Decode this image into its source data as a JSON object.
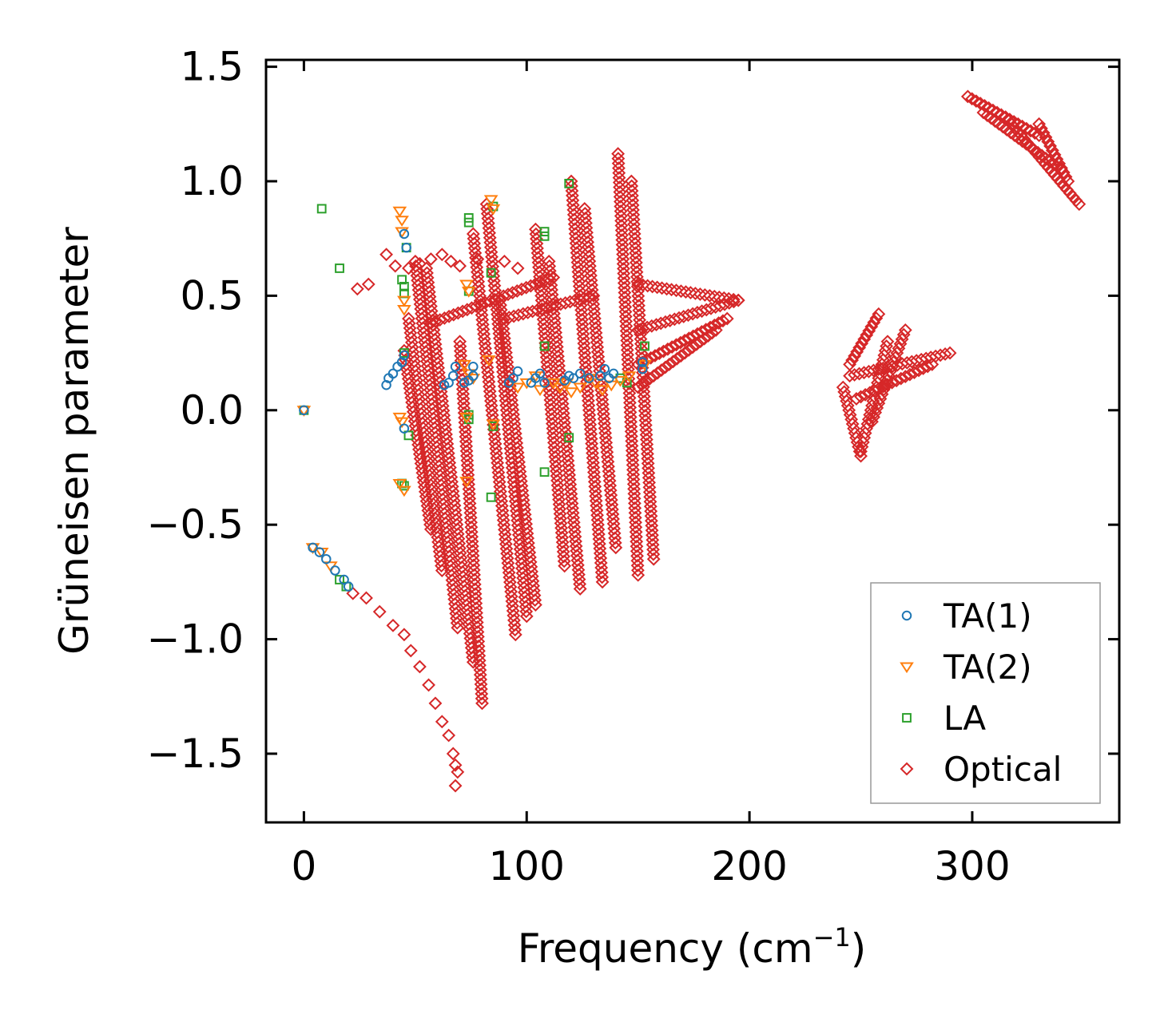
{
  "chart_data": {
    "type": "scatter",
    "xlabel": "Frequency (cm",
    "xlabel_sup": "−1",
    "xlabel_end": ")",
    "ylabel": "Grüneisen parameter",
    "xlim": [
      -17,
      366
    ],
    "ylim": [
      -1.8,
      1.53
    ],
    "x_ticks": [
      0,
      100,
      200,
      300
    ],
    "x_tick_labels": [
      "0",
      "100",
      "200",
      "300"
    ],
    "y_ticks": [
      1.5,
      1.0,
      0.5,
      0.0,
      -0.5,
      -1.0,
      -1.5
    ],
    "y_tick_labels": [
      "1.5",
      "1.0",
      "0.5",
      "0.0",
      "−0.5",
      "−1.0",
      "−1.5"
    ],
    "legend_position": "bottom-right",
    "series": [
      {
        "name": "TA(1)",
        "marker": "circle",
        "color": "#1f77b4",
        "points": [
          [
            0,
            0
          ],
          [
            4,
            -0.6
          ],
          [
            7,
            -0.62
          ],
          [
            10,
            -0.65
          ],
          [
            14,
            -0.7
          ],
          [
            18,
            -0.74
          ],
          [
            20,
            -0.77
          ],
          [
            37,
            0.11
          ],
          [
            38,
            0.14
          ],
          [
            40,
            0.16
          ],
          [
            42,
            0.19
          ],
          [
            44,
            0.21
          ],
          [
            45,
            0.24
          ],
          [
            45,
            0.77
          ],
          [
            46,
            0.71
          ],
          [
            45,
            -0.08
          ],
          [
            63,
            0.11
          ],
          [
            65,
            0.12
          ],
          [
            67,
            0.15
          ],
          [
            68,
            0.19
          ],
          [
            72,
            0.12
          ],
          [
            74,
            0.13
          ],
          [
            76,
            0.15
          ],
          [
            76,
            0.19
          ],
          [
            92,
            0.12
          ],
          [
            94,
            0.14
          ],
          [
            96,
            0.17
          ],
          [
            102,
            0.12
          ],
          [
            104,
            0.14
          ],
          [
            106,
            0.16
          ],
          [
            108,
            0.12
          ],
          [
            117,
            0.13
          ],
          [
            119,
            0.15
          ],
          [
            121,
            0.14
          ],
          [
            124,
            0.16
          ],
          [
            128,
            0.14
          ],
          [
            133,
            0.15
          ],
          [
            135,
            0.18
          ],
          [
            137,
            0.14
          ],
          [
            139,
            0.16
          ],
          [
            152,
            0.18
          ],
          [
            152,
            0.21
          ]
        ]
      },
      {
        "name": "TA(2)",
        "marker": "triangle-down",
        "color": "#ff7f0e",
        "points": [
          [
            0,
            0
          ],
          [
            4,
            -0.6
          ],
          [
            8,
            -0.62
          ],
          [
            12,
            -0.68
          ],
          [
            43,
            0.87
          ],
          [
            44,
            0.83
          ],
          [
            44,
            0.78
          ],
          [
            45,
            0.48
          ],
          [
            45,
            0.44
          ],
          [
            43,
            -0.03
          ],
          [
            44,
            -0.05
          ],
          [
            43,
            -0.32
          ],
          [
            45,
            -0.35
          ],
          [
            73,
            0.55
          ],
          [
            74,
            0.52
          ],
          [
            72,
            0.2
          ],
          [
            74,
            0.16
          ],
          [
            76,
            0.14
          ],
          [
            73,
            -0.03
          ],
          [
            73,
            -0.31
          ],
          [
            84,
            0.92
          ],
          [
            85,
            0.88
          ],
          [
            85,
            -0.06
          ],
          [
            83,
            0.22
          ],
          [
            96,
            0.1
          ],
          [
            100,
            0.12
          ],
          [
            104,
            0.15
          ],
          [
            106,
            0.09
          ],
          [
            112,
            0.12
          ],
          [
            115,
            0.1
          ],
          [
            118,
            0.12
          ],
          [
            120,
            0.08
          ],
          [
            124,
            0.1
          ],
          [
            128,
            0.14
          ],
          [
            131,
            0.12
          ],
          [
            134,
            0.09
          ],
          [
            138,
            0.11
          ],
          [
            142,
            0.13
          ],
          [
            146,
            0.15
          ],
          [
            153,
            0.2
          ]
        ]
      },
      {
        "name": "LA",
        "marker": "square",
        "color": "#2ca02c",
        "points": [
          [
            0,
            0
          ],
          [
            8,
            0.88
          ],
          [
            16,
            0.62
          ],
          [
            16,
            -0.74
          ],
          [
            19,
            -0.77
          ],
          [
            44,
            0.57
          ],
          [
            45,
            0.54
          ],
          [
            45,
            0.51
          ],
          [
            46,
            0.71
          ],
          [
            44,
            -0.32
          ],
          [
            45,
            -0.33
          ],
          [
            45,
            0.25
          ],
          [
            47,
            -0.11
          ],
          [
            74,
            0.84
          ],
          [
            74,
            0.82
          ],
          [
            74,
            0.52
          ],
          [
            74,
            -0.02
          ],
          [
            74,
            -0.04
          ],
          [
            84,
            0.6
          ],
          [
            85,
            0.89
          ],
          [
            85,
            -0.07
          ],
          [
            84,
            -0.38
          ],
          [
            108,
            0.78
          ],
          [
            108,
            0.76
          ],
          [
            108,
            0.28
          ],
          [
            108,
            -0.27
          ],
          [
            119,
            0.99
          ],
          [
            119,
            -0.12
          ],
          [
            142,
            0.14
          ],
          [
            145,
            0.12
          ],
          [
            153,
            0.28
          ]
        ]
      },
      {
        "name": "Optical",
        "marker": "diamond",
        "color": "#d62728",
        "points": [
          [
            22,
            -0.8
          ],
          [
            28,
            -0.82
          ],
          [
            34,
            -0.88
          ],
          [
            40,
            -0.94
          ],
          [
            45,
            -0.98
          ],
          [
            48,
            -1.05
          ],
          [
            52,
            -1.12
          ],
          [
            56,
            -1.2
          ],
          [
            59,
            -1.28
          ],
          [
            62,
            -1.36
          ],
          [
            65,
            -1.42
          ],
          [
            67,
            -1.5
          ],
          [
            68,
            -1.55
          ],
          [
            69,
            -1.58
          ],
          [
            68,
            -1.64
          ],
          [
            24,
            0.53
          ],
          [
            29,
            0.55
          ],
          [
            37,
            0.68
          ],
          [
            41,
            0.63
          ],
          [
            47,
            0.62
          ],
          [
            52,
            0.64
          ],
          [
            57,
            0.66
          ],
          [
            62,
            0.68
          ],
          [
            66,
            0.65
          ],
          [
            70,
            0.63
          ],
          [
            78,
            0.66
          ],
          [
            90,
            0.65
          ],
          [
            96,
            0.62
          ]
        ]
      }
    ],
    "optical_bands": [
      {
        "from": [
          45,
          0.26
        ],
        "to": [
          57,
          -0.52
        ]
      },
      {
        "from": [
          47,
          0.4
        ],
        "to": [
          62,
          -0.7
        ]
      },
      {
        "from": [
          50,
          0.65
        ],
        "to": [
          69,
          -0.95
        ]
      },
      {
        "from": [
          55,
          0.62
        ],
        "to": [
          76,
          -1.1
        ]
      },
      {
        "from": [
          70,
          0.3
        ],
        "to": [
          80,
          -1.28
        ]
      },
      {
        "from": [
          76,
          0.77
        ],
        "to": [
          95,
          -0.98
        ]
      },
      {
        "from": [
          82,
          0.9
        ],
        "to": [
          100,
          -0.9
        ]
      },
      {
        "from": [
          88,
          0.48
        ],
        "to": [
          104,
          -0.85
        ]
      },
      {
        "from": [
          104,
          0.79
        ],
        "to": [
          117,
          -0.68
        ]
      },
      {
        "from": [
          110,
          0.65
        ],
        "to": [
          124,
          -0.78
        ]
      },
      {
        "from": [
          120,
          1.0
        ],
        "to": [
          134,
          -0.75
        ]
      },
      {
        "from": [
          126,
          0.88
        ],
        "to": [
          140,
          -0.6
        ]
      },
      {
        "from": [
          141,
          1.12
        ],
        "to": [
          150,
          -0.72
        ]
      },
      {
        "from": [
          147,
          1.0
        ],
        "to": [
          157,
          -0.65
        ]
      },
      {
        "from": [
          57,
          0.38
        ],
        "to": [
          112,
          0.58
        ]
      },
      {
        "from": [
          90,
          0.4
        ],
        "to": [
          130,
          0.5
        ]
      },
      {
        "from": [
          150,
          0.55
        ],
        "to": [
          195,
          0.48
        ]
      },
      {
        "from": [
          150,
          0.35
        ],
        "to": [
          195,
          0.48
        ]
      },
      {
        "from": [
          150,
          0.2
        ],
        "to": [
          190,
          0.4
        ]
      },
      {
        "from": [
          150,
          0.1
        ],
        "to": [
          185,
          0.35
        ]
      },
      {
        "from": [
          298,
          1.37
        ],
        "to": [
          330,
          1.2
        ]
      },
      {
        "from": [
          305,
          1.3
        ],
        "to": [
          340,
          1.05
        ]
      },
      {
        "from": [
          315,
          1.28
        ],
        "to": [
          348,
          0.9
        ]
      },
      {
        "from": [
          330,
          1.25
        ],
        "to": [
          343,
          1.0
        ]
      },
      {
        "from": [
          245,
          0.2
        ],
        "to": [
          258,
          0.42
        ]
      },
      {
        "from": [
          245,
          0.15
        ],
        "to": [
          290,
          0.25
        ]
      },
      {
        "from": [
          248,
          0.05
        ],
        "to": [
          282,
          0.2
        ]
      },
      {
        "from": [
          250,
          -0.18
        ],
        "to": [
          262,
          0.3
        ]
      },
      {
        "from": [
          255,
          -0.05
        ],
        "to": [
          270,
          0.35
        ]
      },
      {
        "from": [
          242,
          0.1
        ],
        "to": [
          250,
          -0.2
        ]
      }
    ]
  }
}
